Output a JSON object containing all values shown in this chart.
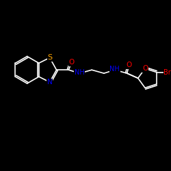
{
  "bg": "#000000",
  "bond_color": "#FFFFFF",
  "atom_colors": {
    "N": "#0000FF",
    "O": "#FF0000",
    "S": "#FFA500",
    "Br": "#FF0000",
    "C": "#FFFFFF",
    "H": "#FFFFFF"
  },
  "font_size": 7.5,
  "lw": 1.2
}
